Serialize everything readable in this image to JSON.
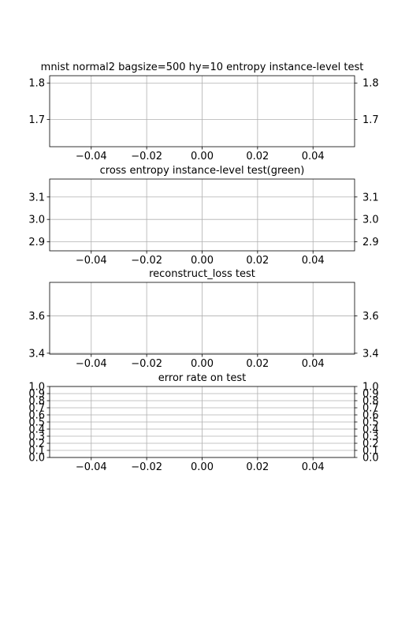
{
  "chart_data": [
    {
      "type": "line",
      "title": "mnist normal2 bagsize=500 hy=10 entropy instance-level test",
      "xlabel": "",
      "ylabel": "",
      "xlim": [
        -0.055,
        0.055
      ],
      "ylim": [
        1.625,
        1.82
      ],
      "x_ticks": [
        -0.04,
        -0.02,
        0.0,
        0.02,
        0.04
      ],
      "x_tick_labels": [
        "−0.04",
        "−0.02",
        "0.00",
        "0.02",
        "0.04"
      ],
      "y_ticks": [
        1.7,
        1.8
      ],
      "y_tick_labels": [
        "1.7",
        "1.8"
      ],
      "grid": true,
      "y_labels_both_sides": true,
      "series": []
    },
    {
      "type": "line",
      "title": "cross entropy instance-level test(green)",
      "xlabel": "",
      "ylabel": "",
      "xlim": [
        -0.055,
        0.055
      ],
      "ylim": [
        2.86,
        3.18
      ],
      "x_ticks": [
        -0.04,
        -0.02,
        0.0,
        0.02,
        0.04
      ],
      "x_tick_labels": [
        "−0.04",
        "−0.02",
        "0.00",
        "0.02",
        "0.04"
      ],
      "y_ticks": [
        2.9,
        3.0,
        3.1
      ],
      "y_tick_labels": [
        "2.9",
        "3.0",
        "3.1"
      ],
      "grid": true,
      "y_labels_both_sides": true,
      "series": []
    },
    {
      "type": "line",
      "title": "reconstruct_loss test",
      "xlabel": "",
      "ylabel": "",
      "xlim": [
        -0.055,
        0.055
      ],
      "ylim": [
        3.395,
        3.78
      ],
      "x_ticks": [
        -0.04,
        -0.02,
        0.0,
        0.02,
        0.04
      ],
      "x_tick_labels": [
        "−0.04",
        "−0.02",
        "0.00",
        "0.02",
        "0.04"
      ],
      "y_ticks": [
        3.4,
        3.6
      ],
      "y_tick_labels": [
        "3.4",
        "3.6"
      ],
      "grid": true,
      "y_labels_both_sides": true,
      "series": []
    },
    {
      "type": "line",
      "title": "error rate on test",
      "xlabel": "",
      "ylabel": "",
      "xlim": [
        -0.055,
        0.055
      ],
      "ylim": [
        0.0,
        1.0
      ],
      "x_ticks": [
        -0.04,
        -0.02,
        0.0,
        0.02,
        0.04
      ],
      "x_tick_labels": [
        "−0.04",
        "−0.02",
        "0.00",
        "0.02",
        "0.04"
      ],
      "y_ticks": [
        0.0,
        0.1,
        0.2,
        0.3,
        0.4,
        0.5,
        0.6,
        0.7,
        0.8,
        0.9,
        1.0
      ],
      "y_tick_labels": [
        "0.0",
        "0.1",
        "0.2",
        "0.3",
        "0.4",
        "0.5",
        "0.6",
        "0.7",
        "0.8",
        "0.9",
        "1.0"
      ],
      "grid": true,
      "y_labels_both_sides": true,
      "series": []
    }
  ],
  "colors": {
    "grid": "#b0b0b0",
    "axes": "#000000",
    "background": "#ffffff"
  }
}
